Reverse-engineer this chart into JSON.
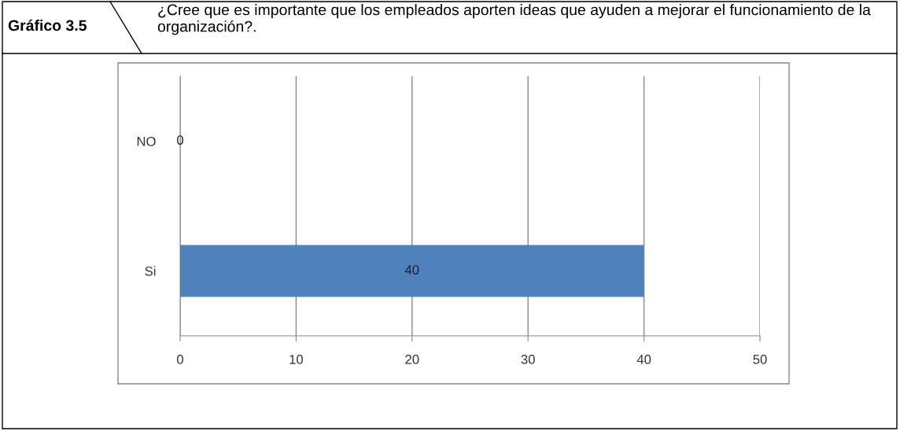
{
  "chart_data": {
    "type": "bar",
    "orientation": "horizontal",
    "title": "Gráfico 3.5",
    "subtitle": "¿Cree que es importante que los empleados aporten ideas que ayuden a mejorar el funcionamiento de la organización?.",
    "categories": [
      "NO",
      "Si"
    ],
    "values": [
      0,
      40
    ],
    "color": "#4f81bd",
    "xlim": [
      0,
      50
    ],
    "xticks": [
      0,
      10,
      20,
      30,
      40,
      50
    ],
    "grid": "x",
    "data_labels": true
  }
}
